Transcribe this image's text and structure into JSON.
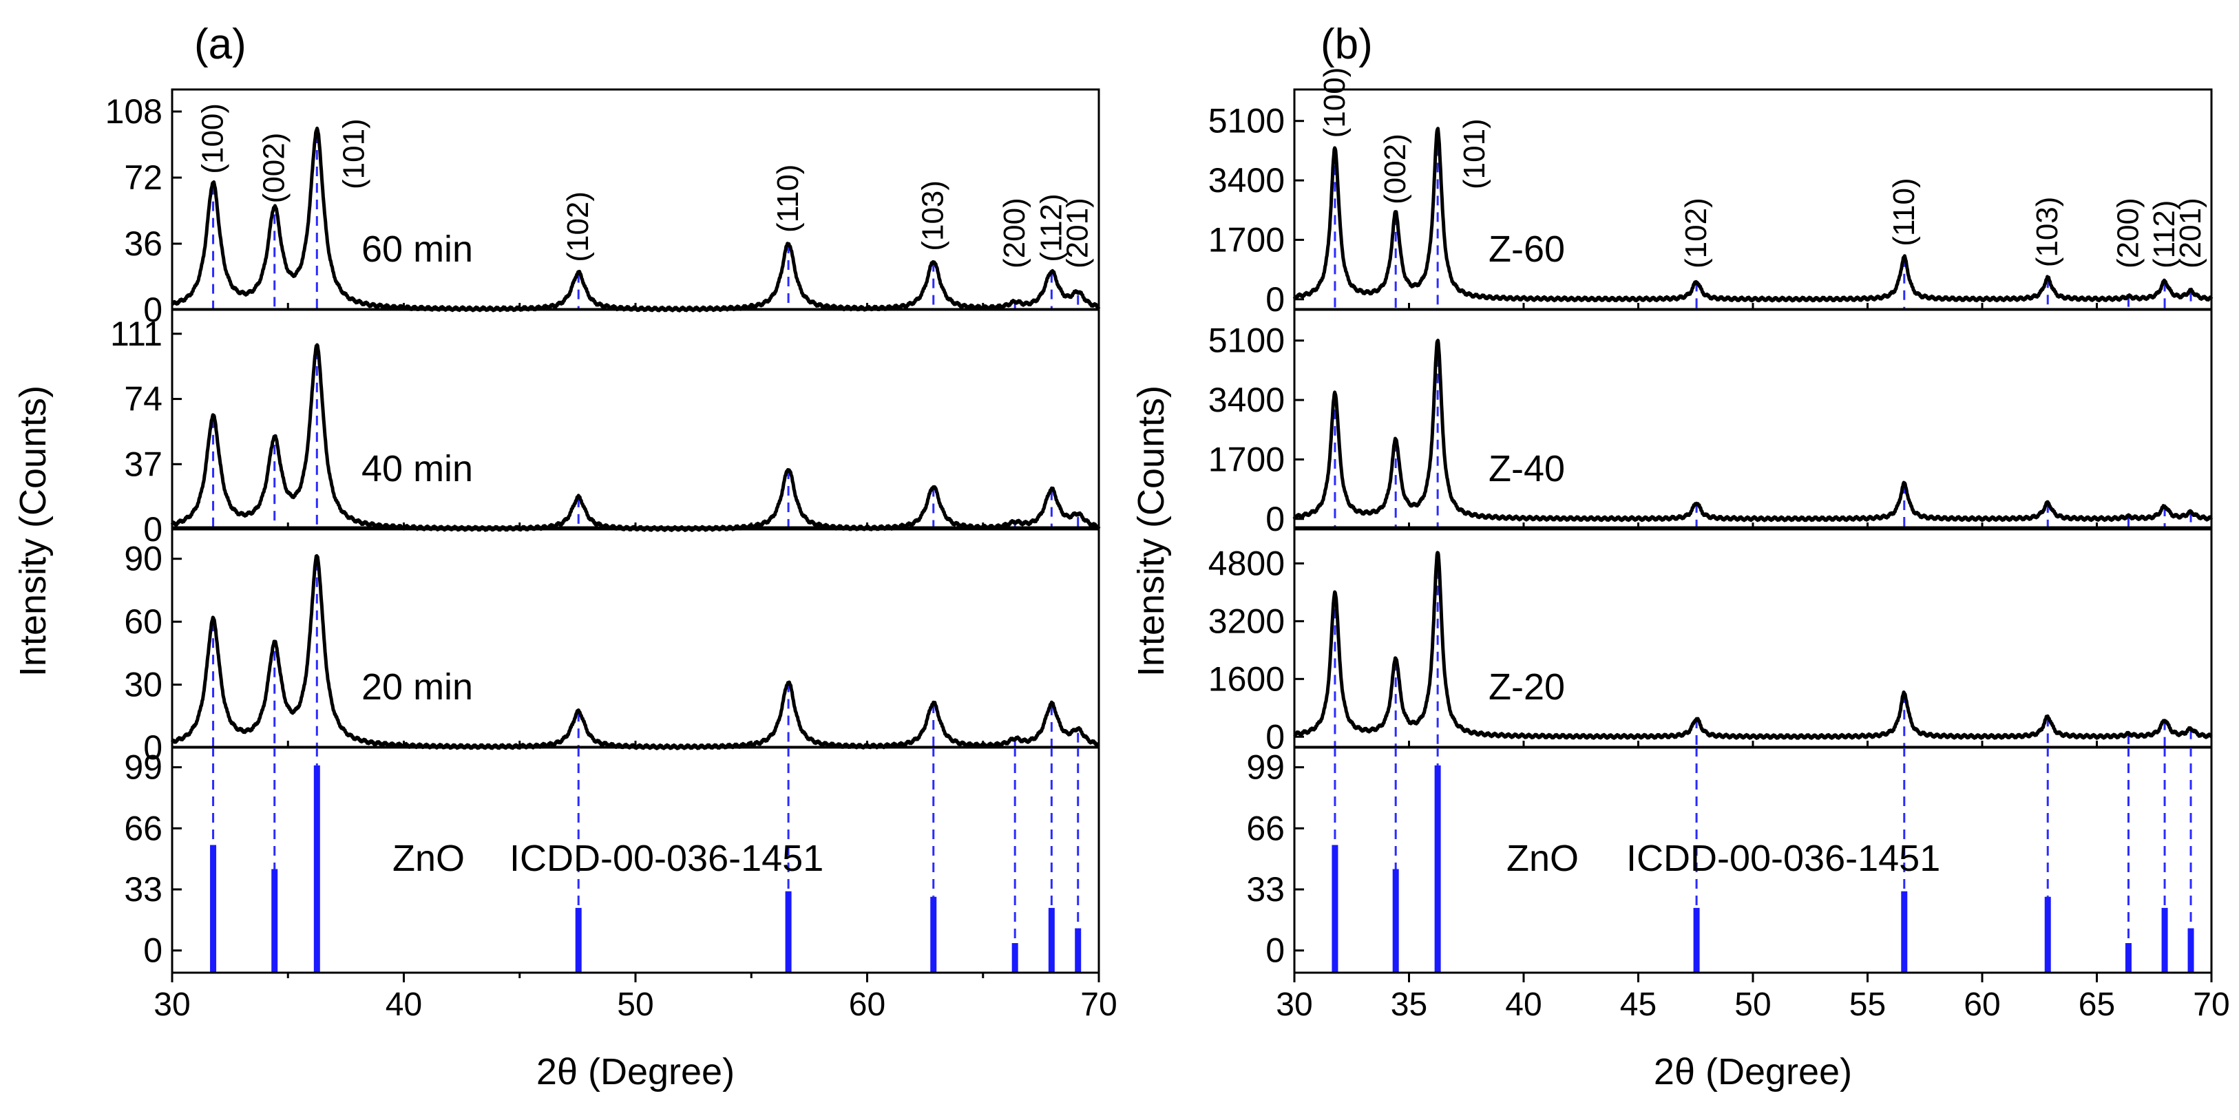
{
  "figure": {
    "x_label": "2θ (Degree)",
    "y_label": "Intensity (Counts)"
  },
  "colors": {
    "trace": "#000000",
    "reference": "#1a1aff",
    "guide": "#2b2bff"
  },
  "peaks": [
    {
      "hkl": "(100)",
      "two_theta": 31.77
    },
    {
      "hkl": "(002)",
      "two_theta": 34.42
    },
    {
      "hkl": "(101)",
      "two_theta": 36.25
    },
    {
      "hkl": "(102)",
      "two_theta": 47.54
    },
    {
      "hkl": "(110)",
      "two_theta": 56.6
    },
    {
      "hkl": "(103)",
      "two_theta": 62.86
    },
    {
      "hkl": "(200)",
      "two_theta": 66.38
    },
    {
      "hkl": "(112)",
      "two_theta": 67.96
    },
    {
      "hkl": "(201)",
      "two_theta": 69.1
    }
  ],
  "chart_data": [
    {
      "panel": "(a)",
      "type": "line",
      "x_range": [
        30,
        70
      ],
      "x_ticks": [
        "30",
        "40",
        "50",
        "60",
        "70"
      ],
      "peak_width": 0.35,
      "subplots": [
        {
          "label": "60 min",
          "y_range": [
            0,
            120
          ],
          "y_ticks": [
            "0",
            "36",
            "72",
            "108"
          ],
          "heights": [
            68,
            52,
            96,
            20,
            36,
            26,
            3,
            20,
            8
          ]
        },
        {
          "label": "40 min",
          "y_range": [
            0,
            125
          ],
          "y_ticks": [
            "0",
            "37",
            "74",
            "111"
          ],
          "heights": [
            63,
            48,
            102,
            18,
            34,
            24,
            3,
            22,
            7
          ]
        },
        {
          "label": "20 min",
          "y_range": [
            0,
            105
          ],
          "y_ticks": [
            "0",
            "30",
            "60",
            "90"
          ],
          "heights": [
            60,
            46,
            89,
            17,
            31,
            21,
            3,
            20,
            7
          ]
        }
      ],
      "reference": {
        "name": "ZnO",
        "card": "ICDD-00-036-1451",
        "y_range": [
          -12,
          110
        ],
        "y_ticks": [
          "0",
          "33",
          "66",
          "99"
        ],
        "intensities": [
          57,
          44,
          100,
          23,
          32,
          29,
          4,
          23,
          12
        ]
      }
    },
    {
      "panel": "(b)",
      "type": "line",
      "x_range": [
        30,
        70
      ],
      "x_ticks": [
        "30",
        "35",
        "40",
        "45",
        "50",
        "55",
        "60",
        "65",
        "70"
      ],
      "peak_width": 0.22,
      "subplots": [
        {
          "label": "Z-60",
          "y_range": [
            -300,
            6000
          ],
          "y_ticks": [
            "0",
            "1700",
            "3400",
            "5100"
          ],
          "heights": [
            4300,
            2400,
            4850,
            500,
            1200,
            600,
            60,
            500,
            220
          ]
        },
        {
          "label": "Z-40",
          "y_range": [
            -300,
            6000
          ],
          "y_ticks": [
            "0",
            "1700",
            "3400",
            "5100"
          ],
          "heights": [
            3600,
            2200,
            5100,
            450,
            1000,
            450,
            60,
            350,
            180
          ]
        },
        {
          "label": "Z-20",
          "y_range": [
            -300,
            5800
          ],
          "y_ticks": [
            "0",
            "1600",
            "3200",
            "4800"
          ],
          "heights": [
            4000,
            2100,
            5100,
            500,
            1200,
            550,
            60,
            450,
            200
          ]
        }
      ],
      "reference": {
        "name": "ZnO",
        "card": "ICDD-00-036-1451",
        "y_range": [
          -12,
          110
        ],
        "y_ticks": [
          "0",
          "33",
          "66",
          "99"
        ],
        "intensities": [
          57,
          44,
          100,
          23,
          32,
          29,
          4,
          23,
          12
        ]
      }
    }
  ]
}
